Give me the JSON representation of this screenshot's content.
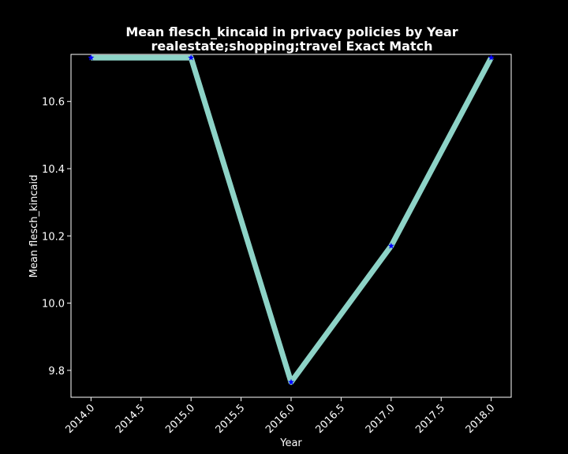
{
  "chart_data": {
    "type": "line",
    "title": "Mean flesch_kincaid in privacy policies by Year",
    "subtitle": "realestate;shopping;travel Exact Match",
    "xlabel": "Year",
    "ylabel": "Mean flesch_kincaid",
    "xlim": [
      1960,
      2020
    ],
    "ylim": [
      9.72,
      10.74
    ],
    "xticks": [
      "2014.0",
      "2014.5",
      "2015.0",
      "2015.5",
      "2016.0",
      "2016.5",
      "2017.0",
      "2017.5",
      "2018.0"
    ],
    "yticks": [
      "9.8",
      "10.0",
      "10.2",
      "10.4",
      "10.6"
    ],
    "x": [
      2014,
      2015,
      2016,
      2017,
      2018
    ],
    "y": [
      10.73,
      10.73,
      9.765,
      10.17,
      10.73
    ],
    "line_color": "#8dd3c7",
    "marker_color": "#0000ff",
    "marker": "star",
    "background": "#000000",
    "axes_color": "#ffffff",
    "grid": false
  }
}
